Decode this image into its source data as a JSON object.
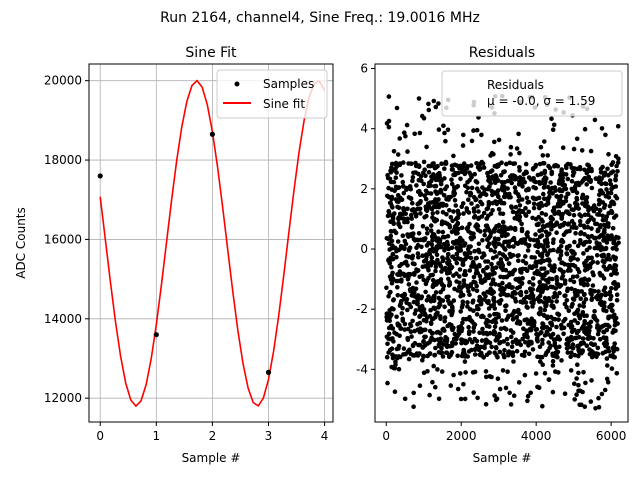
{
  "figure": {
    "suptitle": "Run 2164, channel4, Sine Freq.: 19.0016 MHz"
  },
  "chart_data": [
    {
      "type": "line",
      "title": "Sine Fit",
      "xlabel": "Sample #",
      "ylabel": "ADC Counts",
      "xlim": [
        -0.2,
        4.15
      ],
      "ylim": [
        11400,
        20420
      ],
      "xticks": [
        0,
        1,
        2,
        3,
        4
      ],
      "yticks": [
        12000,
        14000,
        16000,
        18000,
        20000
      ],
      "grid": true,
      "legend_position": "top-right",
      "series": [
        {
          "name": "Samples",
          "kind": "scatter",
          "color": "#000000",
          "x": [
            0,
            1,
            2,
            3
          ],
          "y": [
            17600,
            13600,
            18650,
            12650
          ]
        },
        {
          "name": "Sine fit",
          "kind": "line",
          "color": "#ff0000",
          "fit": {
            "offset": 15900,
            "amplitude": 4100,
            "period": 2.16,
            "peak_x": 1.72
          },
          "x_range": [
            0,
            4
          ]
        }
      ]
    },
    {
      "type": "scatter",
      "title": "Residuals",
      "xlabel": "Sample #",
      "ylabel": "",
      "xlim": [
        -300,
        6450
      ],
      "ylim": [
        -5.75,
        6.15
      ],
      "xticks": [
        0,
        2000,
        4000,
        6000
      ],
      "yticks": [
        -4,
        -2,
        0,
        2,
        4,
        6
      ],
      "grid": false,
      "legend_position": "top-right",
      "series": [
        {
          "name": "Residuals",
          "kind": "scatter",
          "color": "#000000",
          "n_points": 6200,
          "x_range": [
            0,
            6200
          ],
          "mean": -0.0,
          "std": 1.59
        }
      ],
      "annotation": "μ = -0.0, σ = 1.59"
    }
  ]
}
